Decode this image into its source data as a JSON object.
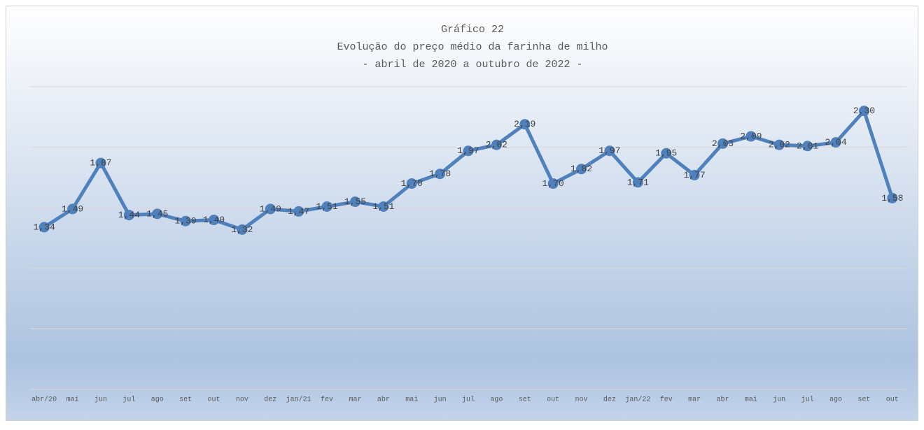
{
  "chart_data": {
    "type": "line",
    "title": "Gráfico 22",
    "subtitle": [
      "Evolução do preço médio da farinha de milho",
      "- abril de 2020 a outubro de 2022 -"
    ],
    "categories": [
      "abr/20",
      "mai",
      "jun",
      "jul",
      "ago",
      "set",
      "out",
      "nov",
      "dez",
      "jan/21",
      "fev",
      "mar",
      "abr",
      "mai",
      "jun",
      "jul",
      "ago",
      "set",
      "out",
      "nov",
      "dez",
      "jan/22",
      "fev",
      "mar",
      "abr",
      "mai",
      "jun",
      "jul",
      "ago",
      "set",
      "out"
    ],
    "series": [
      {
        "name": "Preço médio",
        "color": "#4f81bd",
        "values": [
          1.34,
          1.49,
          1.87,
          1.44,
          1.45,
          1.39,
          1.4,
          1.32,
          1.49,
          1.47,
          1.51,
          1.55,
          1.51,
          1.7,
          1.78,
          1.97,
          2.02,
          2.19,
          1.7,
          1.82,
          1.97,
          1.71,
          1.95,
          1.77,
          2.03,
          2.09,
          2.02,
          2.01,
          2.04,
          2.3,
          1.58
        ],
        "value_labels": [
          "1,34",
          "1,49",
          "1,87",
          "1,44",
          "1,45",
          "1,39",
          "1,40",
          "1,32",
          "1,49",
          "1,47",
          "1,51",
          "1,55",
          "1,51",
          "1,70",
          "1,78",
          "1,97",
          "2,02",
          "2,19",
          "1,70",
          "1,82",
          "1,97",
          "1,71",
          "1,95",
          "1,77",
          "2,03",
          "2,09",
          "2,02",
          "2,01",
          "2,04",
          "2,30",
          "1,58"
        ]
      }
    ],
    "ylim": [
      0,
      2.5
    ],
    "yticks": [
      0,
      0.5,
      1,
      1.5,
      2,
      2.5
    ],
    "grid": true
  }
}
